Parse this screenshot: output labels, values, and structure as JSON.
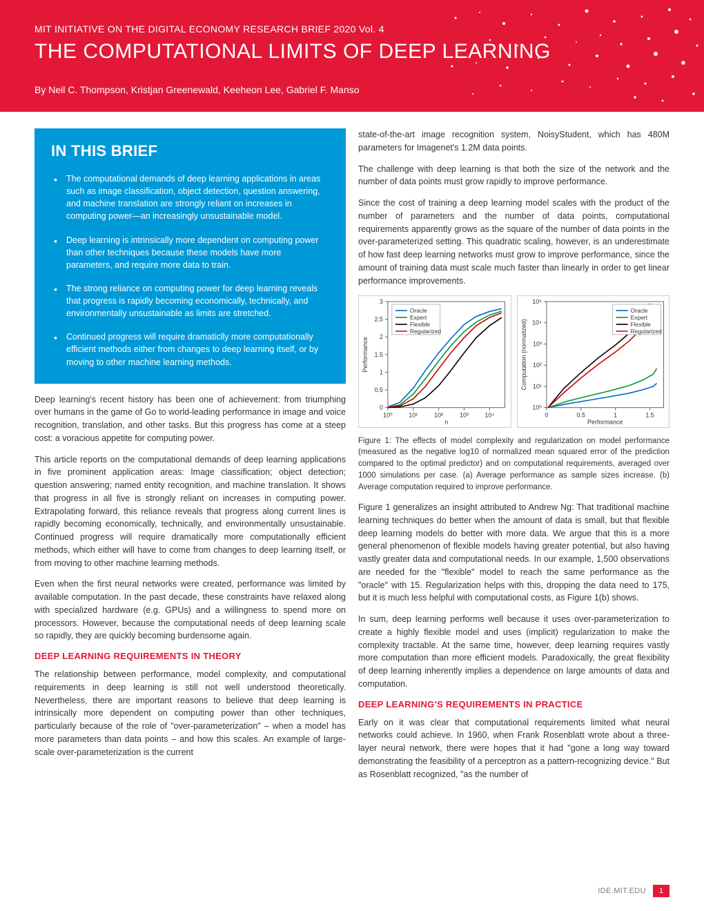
{
  "header": {
    "series": "MIT INITIATIVE ON THE DIGITAL ECONOMY RESEARCH BRIEF   2020 Vol. 4",
    "title": "THE COMPUTATIONAL LIMITS OF DEEP LEARNING",
    "authors": "By Neil C. Thompson, Kristjan Greenewald, Keeheon Lee, Gabriel F. Manso",
    "bg_color": "#e31837"
  },
  "brief": {
    "title": "IN THIS BRIEF",
    "bg_color": "#0099d8",
    "items": [
      "The computational demands of deep learning applications in areas such as image classification, object detection, question answering, and machine translation are strongly reliant on increases in computing power—an increasingly  unsustainable model.",
      "Deep learning is intrinsically more dependent on computing power than other techniques because these models have more parameters, and require more data to train.",
      "The strong reliance on computing power for deep learning reveals that progress is rapidly becoming economically, technically, and environmentally unsustainable as limits are stretched.",
      "Continued progress will require dramaticlly more computationally efficient methods either from changes to deep learning itself, or by moving to other machine learning methods."
    ]
  },
  "left_body": [
    "Deep learning's recent history has been one of achievement: from triumphing over humans in the game of Go to world-leading performance in image and voice recognition, translation, and other tasks. But this progress has come at a steep cost: a voracious appetite for computing power.",
    "This article reports on the computational demands of deep learning applications in five prominent application areas: Image classification; object detection; question answering; named entity recognition, and machine translation. It shows that progress in all five is strongly reliant on increases in computing power. Extrapolating forward, this reliance reveals that progress along current lines is rapidly becoming economically, technically, and environmentally unsustainable. Continued progress will require dramatically more computationally efficient methods, which either will have to come from changes to deep learning itself, or from moving to other machine learning methods.",
    "Even when the first neural networks were created, performance was limited by available computation. In the past decade, these constraints have relaxed along with specialized hardware (e.g. GPUs) and a willingness to spend more on processors. However, because the computational needs of deep learning scale so rapidly, they are quickly becoming burdensome again."
  ],
  "section_theory": {
    "heading": "DEEP LEARNING REQUIREMENTS IN THEORY",
    "body": "The relationship between performance, model complexity, and computational requirements in deep learning is still not well understood theoretically. Nevertheless, there are important reasons to believe that deep learning is intrinsically more dependent on computing power than other techniques, particularly because of the role of \"over-parameterization\" – when a model has more  parameters than data points – and how this scales. An example of large-scale over-parameterization is the current"
  },
  "right_top": [
    "state-of-the-art image recognition system, NoisyStudent, which has 480M parameters for Imagenet's 1.2M data points.",
    "The challenge with deep learning is that both the size of the network and the number of data points must grow rapidly to improve performance.",
    "Since the cost of training a deep learning model scales with the product of the number of parameters and the number of data points, computational requirements apparently grows as the square of the number of data points in the over-parameterized setting. This quadratic scaling, however, is an underestimate of how fast deep learning networks must grow to improve performance, since the amount of training data must scale much faster than linearly in order to get linear performance improvements."
  ],
  "figure": {
    "caption": "Figure 1: The effects of model complexity and regularization on model performance (measured as the negative log10 of normalized mean squared error of the prediction compared to the optimal predictor) and on computational requirements, averaged over 1000 simulations per case. (a) Average performance as sample sizes increase. (b) Average computation required to improve performance.",
    "legend": [
      "Oracle",
      "Expert",
      "Flexible",
      "Regularized"
    ],
    "colors": {
      "Oracle": "#0066cc",
      "Expert": "#009933",
      "Flexible": "#000000",
      "Regularized": "#cc0000",
      "axis": "#666666",
      "chart_border": "#cccccc"
    },
    "chart_a": {
      "type": "line",
      "xlabel": "n",
      "ylabel": "Performance",
      "xscale": "log",
      "xlim": [
        1,
        40000
      ],
      "ylim": [
        0,
        3
      ],
      "xticks": [
        1,
        10,
        100,
        1000,
        10000
      ],
      "xtick_labels": [
        "10⁰",
        "10¹",
        "10²",
        "10³",
        "10⁴"
      ],
      "yticks": [
        0,
        0.5,
        1,
        1.5,
        2,
        2.5,
        3
      ],
      "series": {
        "Oracle": {
          "x": [
            1,
            3,
            10,
            30,
            100,
            300,
            1000,
            3000,
            10000,
            30000
          ],
          "y": [
            0.02,
            0.15,
            0.55,
            1.05,
            1.55,
            1.95,
            2.35,
            2.58,
            2.72,
            2.8
          ]
        },
        "Expert": {
          "x": [
            1,
            3,
            10,
            30,
            100,
            300,
            1000,
            3000,
            10000,
            30000
          ],
          "y": [
            0.01,
            0.08,
            0.38,
            0.82,
            1.32,
            1.75,
            2.15,
            2.42,
            2.62,
            2.73
          ]
        },
        "Flexible": {
          "x": [
            1,
            3,
            10,
            30,
            100,
            300,
            1000,
            3000,
            10000,
            30000
          ],
          "y": [
            0.0,
            0.02,
            0.1,
            0.28,
            0.62,
            1.05,
            1.55,
            1.98,
            2.32,
            2.55
          ]
        },
        "Regularized": {
          "x": [
            1,
            3,
            10,
            30,
            100,
            300,
            1000,
            3000,
            10000,
            30000
          ],
          "y": [
            0.01,
            0.05,
            0.25,
            0.6,
            1.1,
            1.55,
            1.98,
            2.32,
            2.55,
            2.68
          ]
        }
      }
    },
    "chart_b": {
      "type": "line",
      "xlabel": "Performance",
      "ylabel": "Computation (normalized)",
      "yscale": "log",
      "xlim": [
        0,
        1.7
      ],
      "ylim": [
        1,
        100000
      ],
      "xticks": [
        0,
        0.5,
        1,
        1.5
      ],
      "yticks": [
        1,
        10,
        100,
        1000,
        10000,
        100000
      ],
      "ytick_labels": [
        "10⁰",
        "10¹",
        "10²",
        "10³",
        "10⁴",
        "10⁵"
      ],
      "series": {
        "Oracle": {
          "x": [
            0.02,
            0.3,
            0.6,
            0.9,
            1.2,
            1.4,
            1.55,
            1.6
          ],
          "y": [
            1,
            1.5,
            2.2,
            3.2,
            4.8,
            7,
            10,
            14
          ]
        },
        "Expert": {
          "x": [
            0.02,
            0.3,
            0.6,
            0.9,
            1.2,
            1.4,
            1.55,
            1.6
          ],
          "y": [
            1,
            2,
            3.5,
            6,
            11,
            20,
            38,
            70
          ]
        },
        "Flexible": {
          "x": [
            0.02,
            0.25,
            0.5,
            0.75,
            1.0,
            1.2,
            1.35,
            1.45,
            1.5
          ],
          "y": [
            1,
            8,
            45,
            220,
            900,
            3200,
            10000,
            30000,
            80000
          ]
        },
        "Regularized": {
          "x": [
            0.02,
            0.25,
            0.5,
            0.75,
            1.0,
            1.2,
            1.35,
            1.45,
            1.5
          ],
          "y": [
            1,
            5,
            25,
            110,
            420,
            1400,
            4200,
            12000,
            35000
          ]
        }
      }
    }
  },
  "right_bottom": [
    "Figure 1 generalizes an insight attributed to Andrew Ng: That traditional machine learning techniques do better when the amount of data is small, but that flexible deep learning models do better with more data. We argue that this is a more general phenomenon of flexible models having greater potential, but also having vastly greater data and computational needs.  In our example, 1,500 observations are needed for the \"flexible\" model to reach the same performance as the \"oracle\" with 15. Regularization helps with this, dropping the data need to 175, but it is much less helpful with computational costs, as Figure 1(b) shows.",
    "In sum, deep learning performs well because it uses over-parameterization to create a highly flexible model and uses (implicit) regularization to make the complexity tractable. At the same time, however, deep learning requires vastly more computation than more efficient models. Paradoxically, the great flexibility of deep learning inherently implies a dependence on large amounts of data and computation."
  ],
  "section_practice": {
    "heading": "DEEP LEARNING'S REQUIREMENTS IN PRACTICE",
    "body": "Early on it was clear that computational requirements limited what neural networks could achieve. In 1960, when Frank Rosenblatt wrote about a three-layer neural network, there were hopes that it had \"gone a long way toward demonstrating the feasibility of a perceptron as a pattern-recognizing device.\" But as Rosenblatt recognized, \"as the number of"
  },
  "footer": {
    "url": "IDE.MIT.EDU",
    "page": "1"
  }
}
